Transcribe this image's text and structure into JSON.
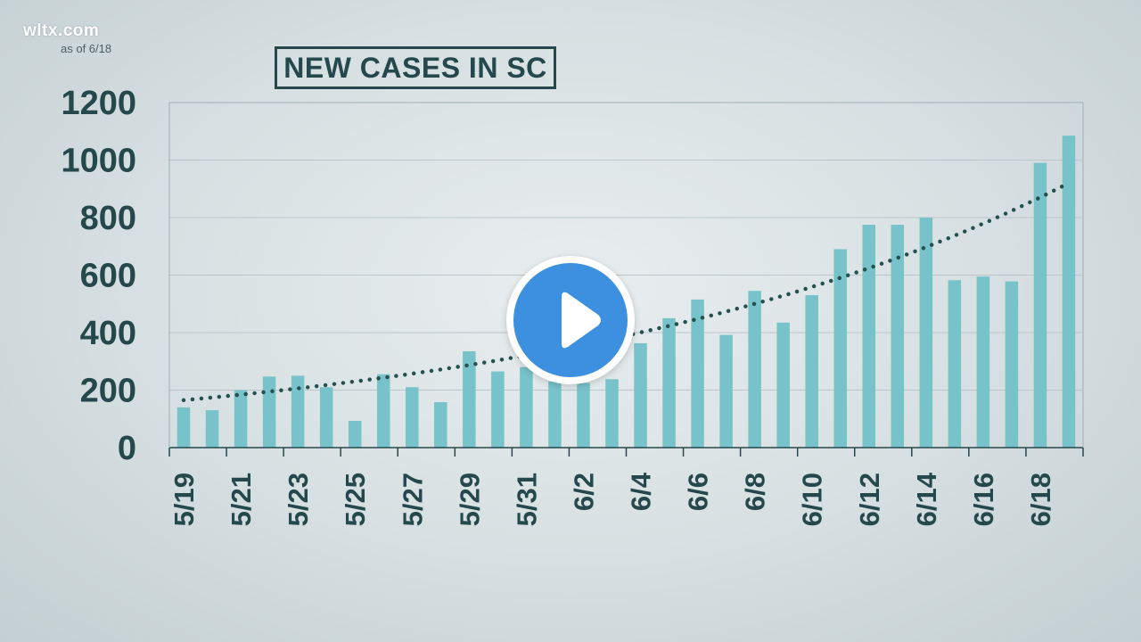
{
  "brand": "wltx.com",
  "source_note": "as of 6/18",
  "chart_data": {
    "type": "bar",
    "title": "NEW CASES IN SC",
    "xlabel": "",
    "ylabel": "",
    "ylim": [
      0,
      1200
    ],
    "yticks": [
      0,
      200,
      400,
      600,
      800,
      1000,
      1200
    ],
    "grid": true,
    "categories": [
      "5/19",
      "5/20",
      "5/21",
      "5/22",
      "5/23",
      "5/24",
      "5/25",
      "5/26",
      "5/27",
      "5/28",
      "5/29",
      "5/30",
      "5/31",
      "6/1",
      "6/2",
      "6/3",
      "6/4",
      "6/5",
      "6/6",
      "6/7",
      "6/8",
      "6/9",
      "6/10",
      "6/11",
      "6/12",
      "6/13",
      "6/14",
      "6/15",
      "6/16",
      "6/17",
      "6/18",
      "6/19"
    ],
    "xtick_labels": [
      "5/19",
      "",
      "5/21",
      "",
      "5/23",
      "",
      "5/25",
      "",
      "5/27",
      "",
      "5/29",
      "",
      "5/31",
      "",
      "6/2",
      "",
      "6/4",
      "",
      "6/6",
      "",
      "6/8",
      "",
      "6/10",
      "",
      "6/12",
      "",
      "6/14",
      "",
      "6/16",
      "",
      "6/18",
      ""
    ],
    "values": [
      140,
      130,
      200,
      247,
      250,
      210,
      93,
      255,
      210,
      158,
      335,
      265,
      280,
      230,
      225,
      238,
      363,
      450,
      515,
      392,
      545,
      435,
      530,
      690,
      775,
      775,
      800,
      582,
      595,
      578,
      990,
      1085
    ],
    "trendline": {
      "style": "dotted",
      "start": 165,
      "end": 920,
      "shape": "exponential"
    },
    "colors": {
      "bar": "#78c2ca",
      "trend": "#24504f",
      "grid": "#b9c7ca",
      "text": "#25484c"
    }
  },
  "play_button": {
    "icon": "play-icon",
    "color": "#3d8fe0"
  }
}
